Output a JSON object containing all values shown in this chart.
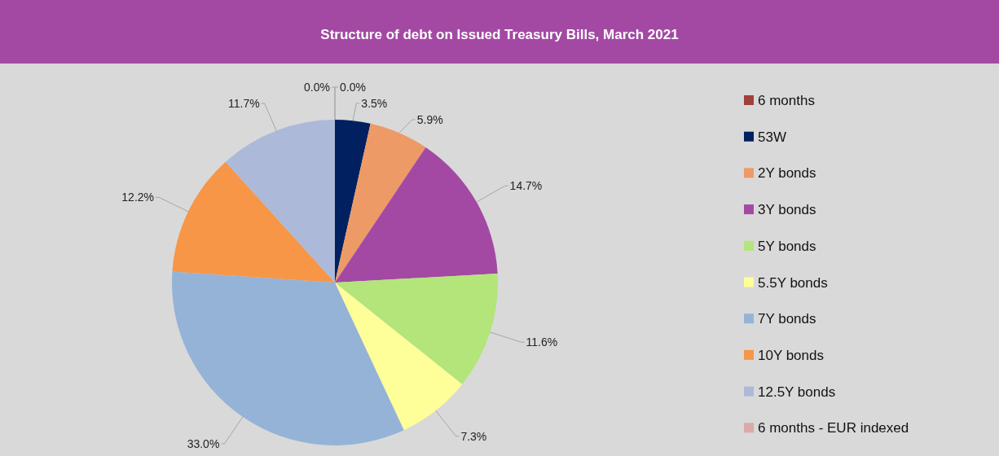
{
  "chart_data": {
    "type": "pie",
    "title": "Structure of debt on Issued Treasury Bills, March 2021",
    "categories": [
      "6 months",
      "53W",
      "2Y bonds",
      "3Y bonds",
      "5Y bonds",
      "5.5Y bonds",
      "7Y bonds",
      "10Y bonds",
      "12.5Y bonds",
      "6 months - EUR indexed"
    ],
    "values": [
      0.0,
      3.5,
      5.9,
      14.7,
      11.6,
      7.3,
      33.0,
      12.2,
      11.7,
      0.0
    ],
    "value_labels": [
      "0.0%",
      "3.5%",
      "5.9%",
      "14.7%",
      "11.6%",
      "7.3%",
      "33.0%",
      "12.2%",
      "11.7%",
      "0.0%"
    ],
    "colors": [
      "#a0403c",
      "#002060",
      "#ed9a66",
      "#a349a4",
      "#b3e57a",
      "#ffff99",
      "#95b3d7",
      "#f79646",
      "#acb9d8",
      "#dba9a9"
    ],
    "legend": "right"
  }
}
